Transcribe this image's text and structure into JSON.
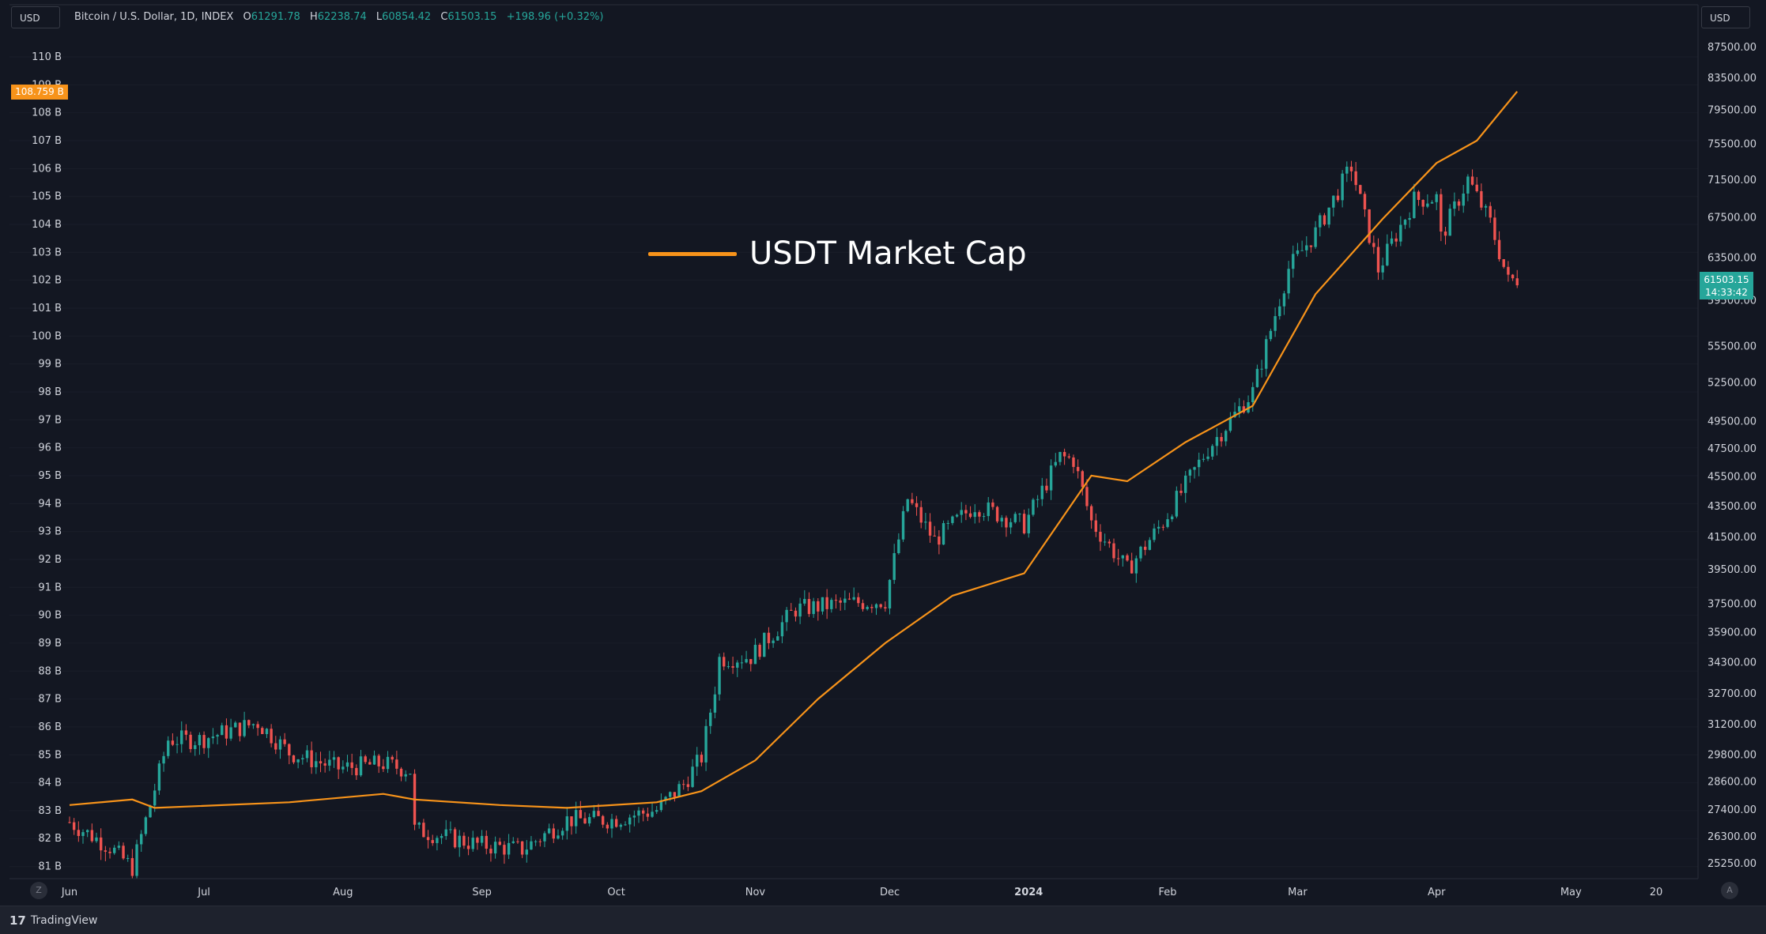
{
  "units": {
    "left": "USD",
    "right": "USD"
  },
  "header": {
    "symbol": "Bitcoin / U.S. Dollar, 1D, INDEX",
    "open_label": "O",
    "open": "61291.78",
    "high_label": "H",
    "high": "62238.74",
    "low_label": "L",
    "low": "60854.42",
    "close_label": "C",
    "close": "61503.15",
    "change": "+198.96 (+0.32%)"
  },
  "legend": {
    "label": "USDT Market Cap"
  },
  "price_tags": {
    "left": "108.759 B",
    "right_price": "61503.15",
    "right_timer": "14:33:42"
  },
  "corner_buttons": {
    "left": "Z",
    "right": "A"
  },
  "footer": {
    "brand": "TradingView",
    "logo": "17"
  },
  "colors": {
    "up": "#26a69a",
    "down": "#ef5350",
    "usdt": "#f7931a",
    "background": "#131722"
  },
  "chart_data": {
    "type": "candlestick",
    "title": "Bitcoin / U.S. Dollar, 1D, INDEX",
    "x_ticks": [
      "Jun",
      "Jul",
      "Aug",
      "Sep",
      "Oct",
      "Nov",
      "Dec",
      "2024",
      "Feb",
      "Mar",
      "Apr",
      "May",
      "20"
    ],
    "left_axis_ticks": [
      "110 B",
      "109 B",
      "108 B",
      "107 B",
      "106 B",
      "105 B",
      "104 B",
      "103 B",
      "102 B",
      "101 B",
      "100 B",
      "99 B",
      "98 B",
      "97 B",
      "96 B",
      "95 B",
      "94 B",
      "93 B",
      "92 B",
      "91 B",
      "90 B",
      "89 B",
      "88 B",
      "87 B",
      "86 B",
      "85 B",
      "84 B",
      "83 B",
      "82 B",
      "81 B"
    ],
    "right_axis_ticks": [
      "87500.00",
      "83500.00",
      "79500.00",
      "75500.00",
      "71500.00",
      "67500.00",
      "63500.00",
      "59500.00",
      "55500.00",
      "52500.00",
      "49500.00",
      "47500.00",
      "45500.00",
      "43500.00",
      "41500.00",
      "39500.00",
      "37500.00",
      "35900.00",
      "34300.00",
      "32700.00",
      "31200.00",
      "29800.00",
      "28600.00",
      "27400.00",
      "26300.00",
      "25250.00"
    ],
    "right_axis_scale": "log",
    "price_series": {
      "name": "Bitcoin / U.S. Dollar",
      "points": [
        [
          "2023-06-01",
          26900
        ],
        [
          "2023-06-10",
          25900
        ],
        [
          "2023-06-15",
          25100
        ],
        [
          "2023-06-20",
          28300
        ],
        [
          "2023-06-23",
          30500
        ],
        [
          "2023-06-30",
          30500
        ],
        [
          "2023-07-13",
          31300
        ],
        [
          "2023-07-20",
          29900
        ],
        [
          "2023-07-31",
          29200
        ],
        [
          "2023-08-10",
          29400
        ],
        [
          "2023-08-16",
          29100
        ],
        [
          "2023-08-17",
          26600
        ],
        [
          "2023-08-31",
          26000
        ],
        [
          "2023-09-10",
          25800
        ],
        [
          "2023-09-20",
          27000
        ],
        [
          "2023-09-30",
          27000
        ],
        [
          "2023-10-10",
          27400
        ],
        [
          "2023-10-16",
          28500
        ],
        [
          "2023-10-20",
          29700
        ],
        [
          "2023-10-23",
          33000
        ],
        [
          "2023-10-24",
          34500
        ],
        [
          "2023-10-31",
          34600
        ],
        [
          "2023-11-10",
          37200
        ],
        [
          "2023-11-20",
          37500
        ],
        [
          "2023-11-30",
          37700
        ],
        [
          "2023-12-05",
          44000
        ],
        [
          "2023-12-11",
          41300
        ],
        [
          "2023-12-20",
          43600
        ],
        [
          "2023-12-31",
          42300
        ],
        [
          "2024-01-08",
          46900
        ],
        [
          "2024-01-11",
          46700
        ],
        [
          "2024-01-15",
          42500
        ],
        [
          "2024-01-23",
          39500
        ],
        [
          "2024-01-31",
          42500
        ],
        [
          "2024-02-10",
          47500
        ],
        [
          "2024-02-20",
          51800
        ],
        [
          "2024-02-28",
          62500
        ],
        [
          "2024-03-05",
          66000
        ],
        [
          "2024-03-13",
          73000
        ],
        [
          "2024-03-19",
          62400
        ],
        [
          "2024-03-27",
          69400
        ],
        [
          "2024-04-01",
          69600
        ],
        [
          "2024-04-02",
          65500
        ],
        [
          "2024-04-08",
          71600
        ],
        [
          "2024-04-13",
          67000
        ],
        [
          "2024-04-17",
          61300
        ],
        [
          "2024-04-19",
          61503
        ]
      ]
    },
    "usdt_series": {
      "name": "USDT Market Cap",
      "unit": "B",
      "points": [
        [
          "2023-06-01",
          83.2
        ],
        [
          "2023-06-15",
          83.4
        ],
        [
          "2023-06-20",
          83.1
        ],
        [
          "2023-07-20",
          83.3
        ],
        [
          "2023-08-10",
          83.6
        ],
        [
          "2023-08-17",
          83.4
        ],
        [
          "2023-09-05",
          83.2
        ],
        [
          "2023-09-20",
          83.1
        ],
        [
          "2023-10-10",
          83.3
        ],
        [
          "2023-10-20",
          83.7
        ],
        [
          "2023-11-01",
          84.8
        ],
        [
          "2023-11-15",
          87.0
        ],
        [
          "2023-11-30",
          89.0
        ],
        [
          "2023-12-15",
          90.7
        ],
        [
          "2023-12-31",
          91.5
        ],
        [
          "2024-01-15",
          95.0
        ],
        [
          "2024-01-23",
          94.8
        ],
        [
          "2024-02-05",
          96.2
        ],
        [
          "2024-02-20",
          97.5
        ],
        [
          "2024-03-05",
          101.5
        ],
        [
          "2024-03-20",
          104.2
        ],
        [
          "2024-04-01",
          106.2
        ],
        [
          "2024-04-10",
          107.0
        ],
        [
          "2024-04-19",
          108.759
        ]
      ]
    }
  }
}
